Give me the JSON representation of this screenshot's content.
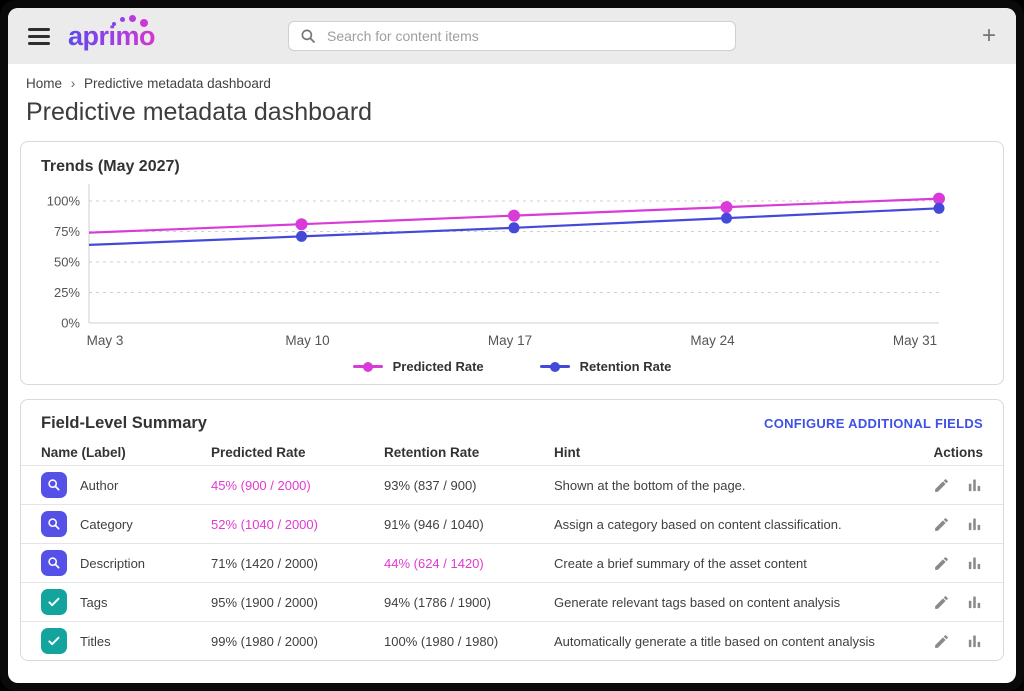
{
  "header": {
    "logo_text": "aprimo",
    "search_placeholder": "Search for content items",
    "add_label": "+"
  },
  "breadcrumb": {
    "home": "Home",
    "separator": "›",
    "current": "Predictive metadata dashboard"
  },
  "page_title": "Predictive metadata dashboard",
  "chart_card": {
    "title": "Trends (May 2027)"
  },
  "chart_data": {
    "type": "line",
    "title": "Trends (May 2027)",
    "x": [
      "May 3",
      "May 10",
      "May 17",
      "May 24",
      "May 31"
    ],
    "series": [
      {
        "name": "Predicted Rate",
        "color": "#d93bd9",
        "values": [
          74,
          81,
          88,
          95,
          102
        ]
      },
      {
        "name": "Retention Rate",
        "color": "#4449d9",
        "values": [
          64,
          71,
          78,
          86,
          94
        ]
      }
    ],
    "y_ticks": [
      {
        "value": 0,
        "label": "0%"
      },
      {
        "value": 25,
        "label": "25%"
      },
      {
        "value": 50,
        "label": "50%"
      },
      {
        "value": 75,
        "label": "75%"
      },
      {
        "value": 100,
        "label": "100%"
      }
    ],
    "ylim": [
      0,
      112
    ],
    "grid": "dashed-horizontal",
    "legend_position": "bottom",
    "markers": "dots-on-all-points-except-first"
  },
  "table_card": {
    "title": "Field-Level Summary",
    "configure_link": "CONFIGURE ADDITIONAL FIELDS",
    "columns": [
      "Name (Label)",
      "Predicted Rate",
      "Retention Rate",
      "Hint",
      "Actions"
    ],
    "rows": [
      {
        "icon": "search",
        "name": "Author",
        "predicted": "45% (900 / 2000)",
        "predicted_highlight": true,
        "retention": "93% (837 / 900)",
        "retention_highlight": false,
        "hint": "Shown at the bottom of the page."
      },
      {
        "icon": "search",
        "name": "Category",
        "predicted": "52% (1040 / 2000)",
        "predicted_highlight": true,
        "retention": "91% (946 / 1040)",
        "retention_highlight": false,
        "hint": "Assign a category based on content classification."
      },
      {
        "icon": "search",
        "name": "Description",
        "predicted": "71% (1420 / 2000)",
        "predicted_highlight": false,
        "retention": "44% (624 / 1420)",
        "retention_highlight": true,
        "hint": "Create a brief summary of the asset content"
      },
      {
        "icon": "check",
        "name": "Tags",
        "predicted": "95% (1900 / 2000)",
        "predicted_highlight": false,
        "retention": "94% (1786 / 1900)",
        "retention_highlight": false,
        "hint": "Generate relevant tags based on content analysis"
      },
      {
        "icon": "check",
        "name": "Titles",
        "predicted": "99% (1980 / 2000)",
        "predicted_highlight": false,
        "retention": "100% (1980 / 1980)",
        "retention_highlight": false,
        "hint": "Automatically generate a title based on content analysis"
      }
    ]
  },
  "colors": {
    "magenta": "#d93bd9",
    "blue": "#4449d9",
    "highlight_text": "#e139d3",
    "link_blue": "#3f51e5",
    "icon_indigo": "#5550e8",
    "icon_teal": "#14a49e",
    "topbar_bg": "#ebebeb",
    "grid_gray": "#cfcfcf"
  }
}
